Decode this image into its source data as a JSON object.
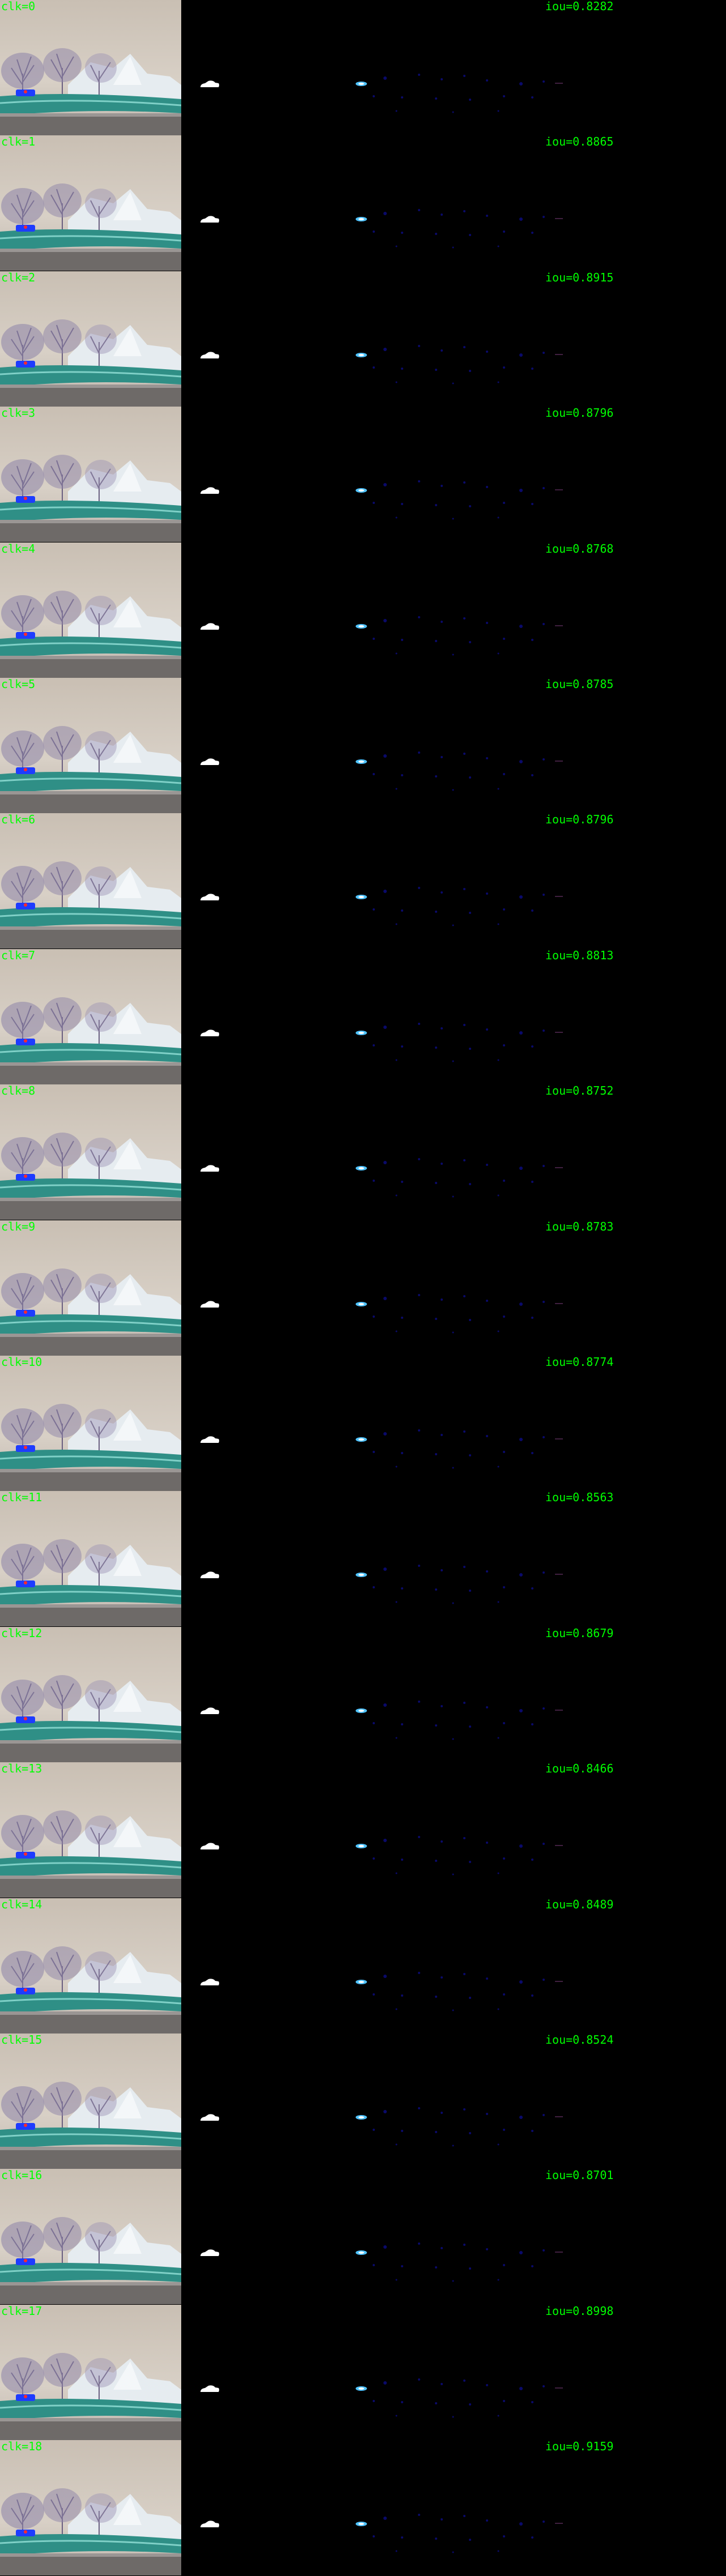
{
  "rows": [
    {
      "clk": "clk=0",
      "iou": "iou=0.8282"
    },
    {
      "clk": "clk=1",
      "iou": "iou=0.8865"
    },
    {
      "clk": "clk=2",
      "iou": "iou=0.8915"
    },
    {
      "clk": "clk=3",
      "iou": "iou=0.8796"
    },
    {
      "clk": "clk=4",
      "iou": "iou=0.8768"
    },
    {
      "clk": "clk=5",
      "iou": "iou=0.8785"
    },
    {
      "clk": "clk=6",
      "iou": "iou=0.8796"
    },
    {
      "clk": "clk=7",
      "iou": "iou=0.8813"
    },
    {
      "clk": "clk=8",
      "iou": "iou=0.8752"
    },
    {
      "clk": "clk=9",
      "iou": "iou=0.8783"
    },
    {
      "clk": "clk=10",
      "iou": "iou=0.8774"
    },
    {
      "clk": "clk=11",
      "iou": "iou=0.8563"
    },
    {
      "clk": "clk=12",
      "iou": "iou=0.8679"
    },
    {
      "clk": "clk=13",
      "iou": "iou=0.8466"
    },
    {
      "clk": "clk=14",
      "iou": "iou=0.8489"
    },
    {
      "clk": "clk=15",
      "iou": "iou=0.8524"
    },
    {
      "clk": "clk=16",
      "iou": "iou=0.8701"
    },
    {
      "clk": "clk=17",
      "iou": "iou=0.8998"
    },
    {
      "clk": "clk=18",
      "iou": "iou=0.9159"
    }
  ],
  "colors": {
    "label": "#00ff00",
    "background": "#000000",
    "mask": "#ffffff",
    "heat_core": "#4fc3ff",
    "heat_dim": "#0a0a6a"
  }
}
